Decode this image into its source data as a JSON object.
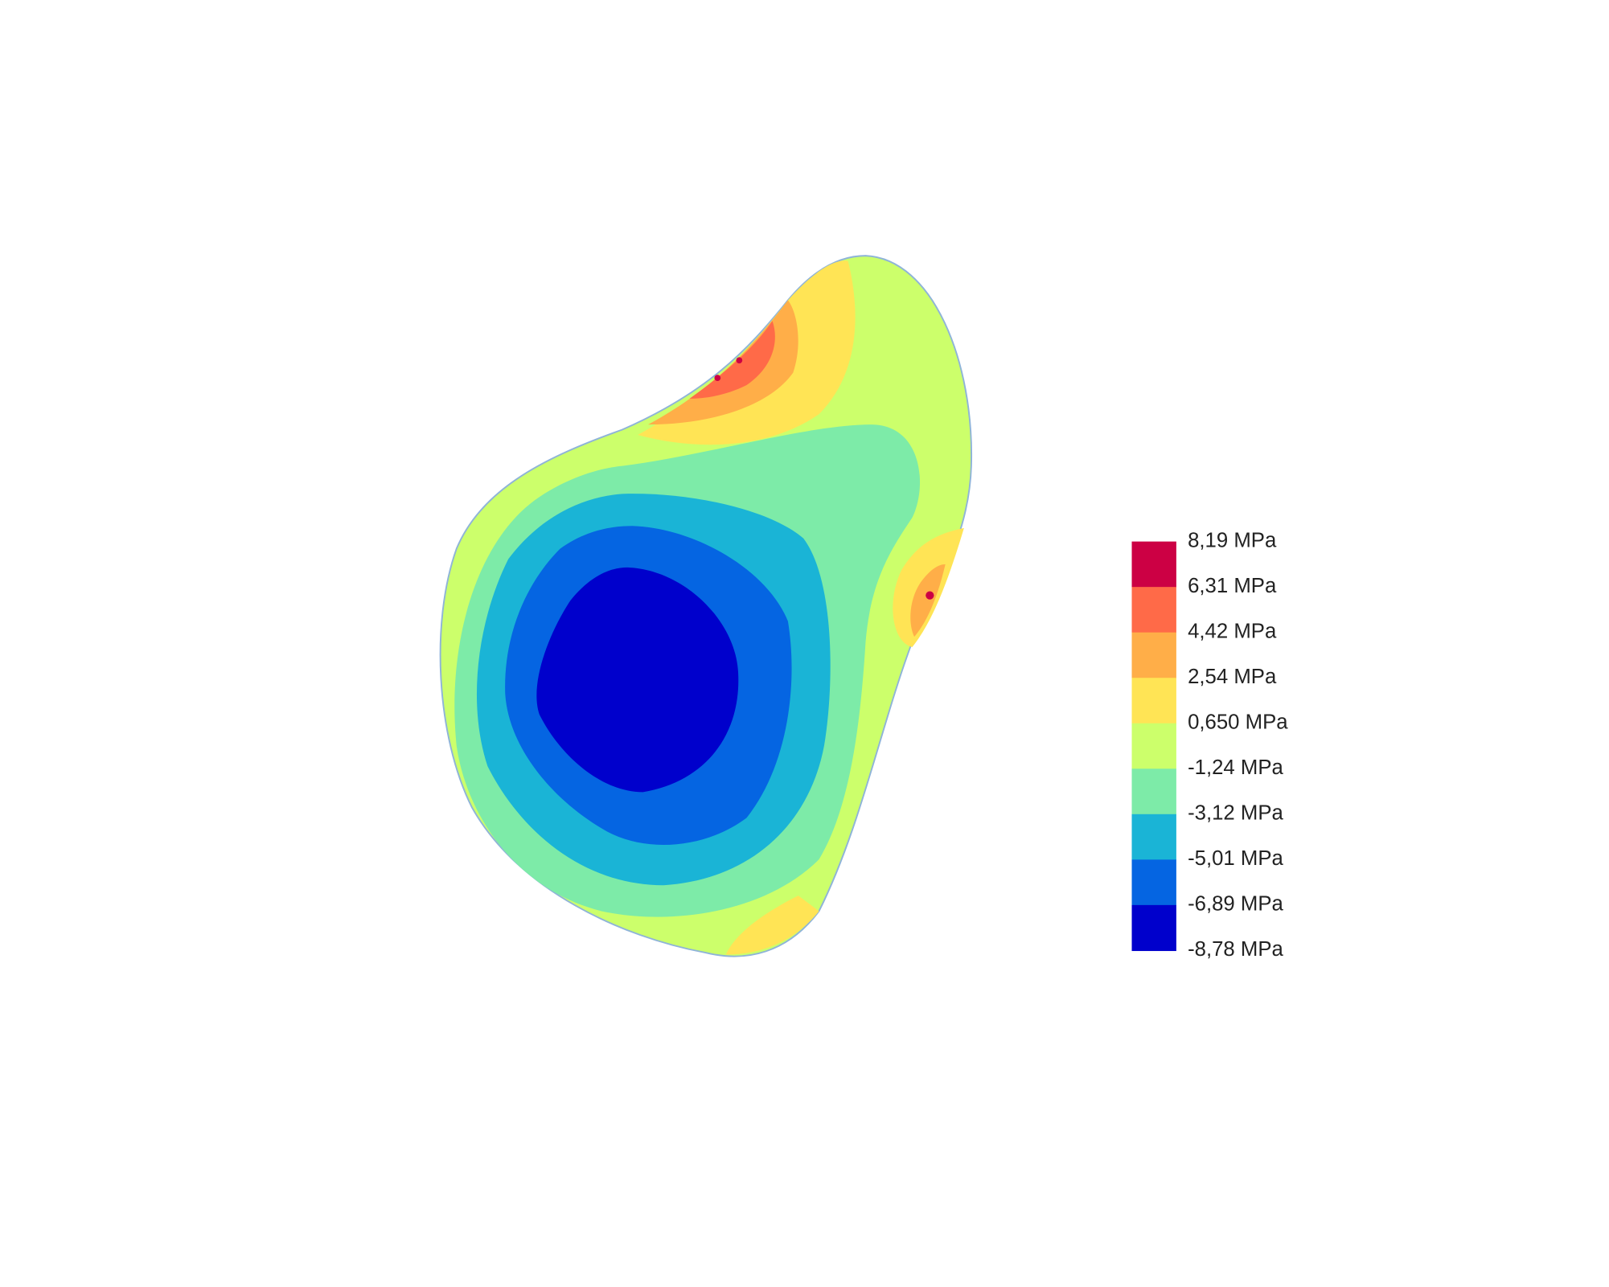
{
  "legend": {
    "labels": [
      "8,19 MPa",
      "6,31 MPa",
      "4,42 MPa",
      "2,54 MPa",
      "0,650 MPa",
      "-1,24 MPa",
      "-3,12 MPa",
      "-5,01 MPa",
      "-6,89 MPa",
      "-8,78 MPa"
    ],
    "colors": [
      "#cc0044",
      "#ff6a48",
      "#ffae48",
      "#ffe455",
      "#ccff6b",
      "#7deba8",
      "#1ab4d6",
      "#0565e2",
      "#0000cc"
    ]
  }
}
